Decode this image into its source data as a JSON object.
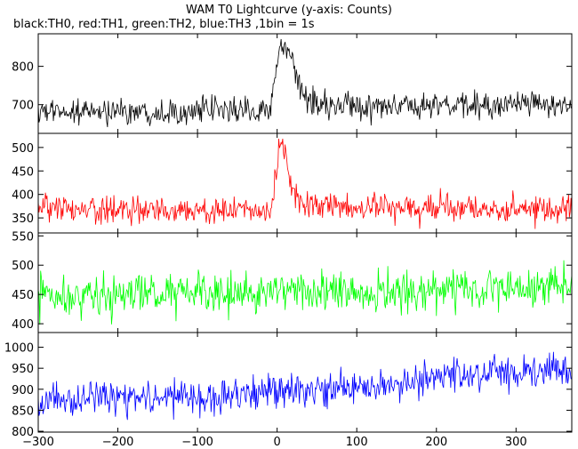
{
  "chart_data": {
    "type": "line",
    "title": "WAM T0 Lightcurve (y-axis: Counts)",
    "subtitle": "black:TH0, red:TH1, green:TH2, blue:TH3 ,1bin = 1s",
    "x_range": [
      -300,
      370
    ],
    "x_ticks": [
      -300,
      -200,
      -100,
      0,
      100,
      200,
      300
    ],
    "grid": false,
    "series": [
      {
        "name": "TH0",
        "color": "#000000",
        "ylim": [
          625,
          885
        ],
        "y_ticks": [
          700,
          800
        ],
        "profile": [
          [
            -300,
            680
          ],
          [
            -200,
            682
          ],
          [
            -100,
            684
          ],
          [
            -20,
            686
          ],
          [
            -8,
            688
          ],
          [
            -3,
            760
          ],
          [
            2,
            830
          ],
          [
            6,
            855
          ],
          [
            10,
            850
          ],
          [
            15,
            825
          ],
          [
            22,
            780
          ],
          [
            30,
            740
          ],
          [
            40,
            712
          ],
          [
            60,
            700
          ],
          [
            100,
            692
          ],
          [
            200,
            696
          ],
          [
            300,
            700
          ],
          [
            370,
            702
          ]
        ],
        "noise": 20
      },
      {
        "name": "TH1",
        "color": "#ff0000",
        "ylim": [
          318,
          530
        ],
        "y_ticks": [
          350,
          400,
          450,
          500
        ],
        "profile": [
          [
            -300,
            368
          ],
          [
            -200,
            366
          ],
          [
            -100,
            366
          ],
          [
            -8,
            366
          ],
          [
            -3,
            420
          ],
          [
            2,
            490
          ],
          [
            6,
            505
          ],
          [
            10,
            480
          ],
          [
            16,
            430
          ],
          [
            25,
            395
          ],
          [
            40,
            378
          ],
          [
            100,
            370
          ],
          [
            200,
            372
          ],
          [
            300,
            370
          ],
          [
            370,
            372
          ]
        ],
        "noise": 17
      },
      {
        "name": "TH2",
        "color": "#00ff00",
        "ylim": [
          385,
          555
        ],
        "y_ticks": [
          400,
          450,
          500,
          550
        ],
        "profile": [
          [
            -300,
            448
          ],
          [
            -100,
            450
          ],
          [
            -5,
            451
          ],
          [
            5,
            470
          ],
          [
            20,
            458
          ],
          [
            40,
            452
          ],
          [
            100,
            450
          ],
          [
            200,
            456
          ],
          [
            300,
            462
          ],
          [
            370,
            465
          ]
        ],
        "noise": 20
      },
      {
        "name": "TH3",
        "color": "#0000ff",
        "ylim": [
          798,
          1035
        ],
        "y_ticks": [
          800,
          850,
          900,
          950,
          1000
        ],
        "profile": [
          [
            -300,
            872
          ],
          [
            -200,
            876
          ],
          [
            -100,
            882
          ],
          [
            0,
            892
          ],
          [
            100,
            905
          ],
          [
            200,
            922
          ],
          [
            300,
            942
          ],
          [
            370,
            950
          ]
        ],
        "noise": 24
      }
    ]
  }
}
